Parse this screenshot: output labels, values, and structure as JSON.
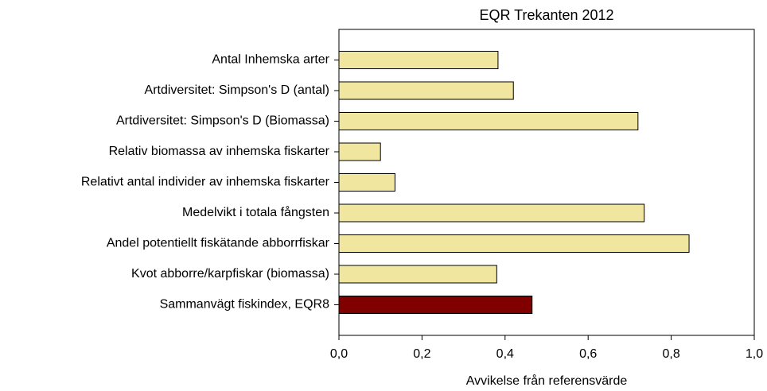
{
  "chart_data": {
    "type": "barh",
    "title": "EQR Trekanten 2012",
    "xlabel": "Avvikelse från referensvärde",
    "categories": [
      "Antal Inhemska arter",
      "Artdiversitet: Simpson's D (antal)",
      "Artdiversitet: Simpson's D (Biomassa)",
      "Relativ biomassa av inhemska fiskarter",
      "Relativt antal individer av inhemska fiskarter",
      "Medelvikt i totala fångsten",
      "Andel potentiellt fiskätande abborrfiskar",
      "Kvot abborre/karpfiskar (biomassa)",
      "Sammanvägt fiskindex, EQR8"
    ],
    "values": [
      0.383,
      0.42,
      0.72,
      0.1,
      0.135,
      0.735,
      0.843,
      0.38,
      0.465
    ],
    "colors": [
      "#f0e6a0",
      "#f0e6a0",
      "#f0e6a0",
      "#f0e6a0",
      "#f0e6a0",
      "#f0e6a0",
      "#f0e6a0",
      "#f0e6a0",
      "#800000"
    ],
    "xlim": [
      0,
      1
    ],
    "xticks": [
      {
        "value": 0,
        "label": "0,0"
      },
      {
        "value": 0.2,
        "label": "0,2"
      },
      {
        "value": 0.4,
        "label": "0,4"
      },
      {
        "value": 0.6,
        "label": "0,6"
      },
      {
        "value": 0.8,
        "label": "0,8"
      },
      {
        "value": 1,
        "label": "1,0"
      }
    ]
  }
}
